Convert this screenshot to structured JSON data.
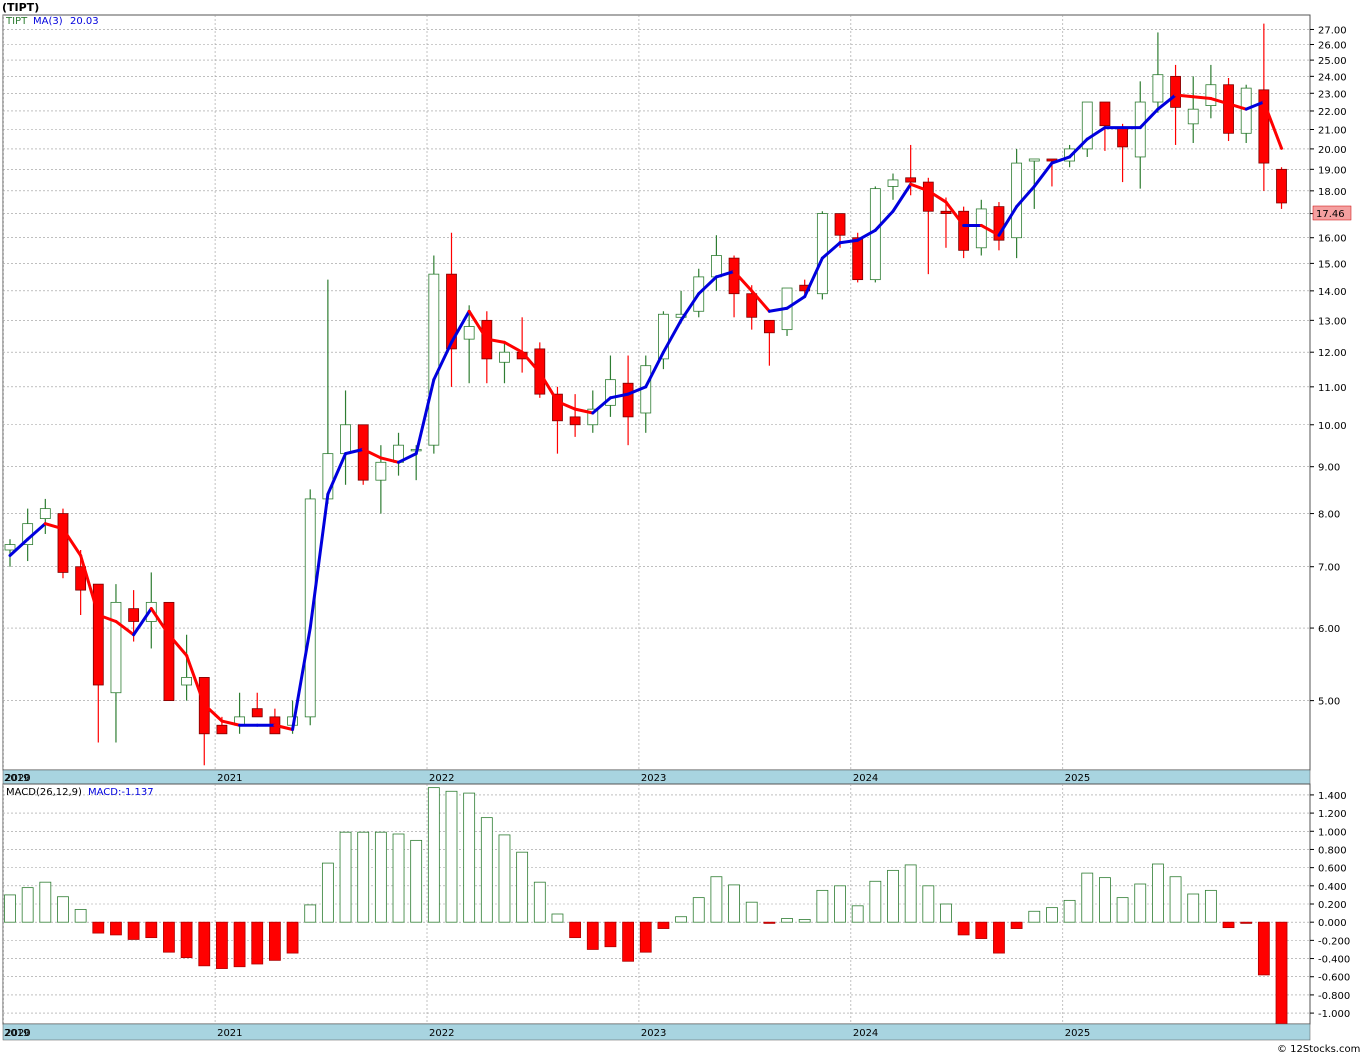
{
  "header": {
    "title": "(TIPT)",
    "legend_ticker": "TIPT",
    "legend_ma_label": "MA(3)",
    "legend_ma_value": "20.03",
    "last_price": "17.46",
    "macd_title": "MACD(26,12,9)",
    "macd_value": "MACD:-1.137",
    "credit": "© 12Stocks.com"
  },
  "colors": {
    "up_candle": "#2e7d32",
    "down_candle": "#ff0000",
    "ma_up": "#0000dd",
    "ma_down": "#ff0000",
    "axis_band": "#a8d4e0",
    "price_tag": "#f4a0a0"
  },
  "chart_data": [
    {
      "type": "candlestick",
      "scale": "log",
      "ylim": [
        4.2,
        28.0
      ],
      "y_ticks": [
        "5.00",
        "6.00",
        "7.00",
        "8.00",
        "9.00",
        "10.00",
        "11.00",
        "12.00",
        "13.00",
        "14.00",
        "15.00",
        "16.00",
        "17.00",
        "18.00",
        "19.00",
        "20.00",
        "21.00",
        "22.00",
        "23.00",
        "24.00",
        "25.00",
        "26.00",
        "27.00"
      ],
      "x_labels": [
        "2019",
        "2020",
        "2021",
        "2022",
        "2023",
        "2024",
        "2025"
      ],
      "x_label_months": [
        -1,
        0,
        12,
        24,
        36,
        48,
        60
      ],
      "series_ohlc": [
        [
          7.3,
          7.5,
          7.0,
          7.4
        ],
        [
          7.4,
          8.1,
          7.1,
          7.8
        ],
        [
          7.9,
          8.3,
          7.6,
          8.1
        ],
        [
          8.0,
          8.1,
          6.8,
          6.9
        ],
        [
          7.0,
          7.3,
          6.2,
          6.6
        ],
        [
          6.7,
          6.7,
          4.5,
          5.2
        ],
        [
          5.1,
          6.7,
          4.5,
          6.4
        ],
        [
          6.3,
          6.6,
          5.8,
          6.1
        ],
        [
          6.1,
          6.9,
          5.7,
          6.4
        ],
        [
          6.4,
          6.4,
          5.0,
          5.0
        ],
        [
          5.2,
          5.9,
          5.0,
          5.3
        ],
        [
          5.3,
          5.3,
          4.25,
          4.6
        ],
        [
          4.7,
          4.8,
          4.6,
          4.6
        ],
        [
          4.7,
          5.1,
          4.6,
          4.8
        ],
        [
          4.9,
          5.1,
          4.8,
          4.8
        ],
        [
          4.8,
          4.9,
          4.6,
          4.6
        ],
        [
          4.7,
          5.0,
          4.6,
          4.8
        ],
        [
          4.8,
          8.5,
          4.7,
          8.3
        ],
        [
          8.3,
          14.4,
          8.2,
          9.3
        ],
        [
          9.3,
          10.9,
          8.6,
          10.0
        ],
        [
          10.0,
          10.0,
          8.6,
          8.7
        ],
        [
          8.7,
          9.5,
          8.0,
          9.1
        ],
        [
          9.1,
          9.8,
          8.8,
          9.5
        ],
        [
          9.4,
          9.5,
          8.7,
          9.4
        ],
        [
          9.5,
          15.3,
          9.3,
          14.6
        ],
        [
          14.6,
          16.2,
          11.0,
          12.1
        ],
        [
          12.4,
          13.5,
          11.1,
          12.8
        ],
        [
          13.0,
          13.3,
          11.1,
          11.8
        ],
        [
          11.7,
          12.3,
          11.1,
          12.0
        ],
        [
          12.0,
          13.1,
          11.4,
          11.8
        ],
        [
          12.1,
          12.3,
          10.7,
          10.8
        ],
        [
          10.8,
          11.0,
          9.3,
          10.1
        ],
        [
          10.2,
          10.8,
          9.7,
          10.0
        ],
        [
          10.0,
          10.9,
          9.8,
          10.4
        ],
        [
          10.5,
          11.9,
          10.2,
          11.2
        ],
        [
          11.1,
          11.9,
          9.5,
          10.2
        ],
        [
          10.3,
          11.9,
          9.8,
          11.6
        ],
        [
          11.8,
          13.3,
          11.5,
          13.2
        ],
        [
          13.1,
          14.0,
          12.9,
          13.2
        ],
        [
          13.3,
          14.8,
          13.1,
          14.5
        ],
        [
          14.5,
          16.1,
          14.0,
          15.3
        ],
        [
          15.2,
          15.3,
          13.1,
          13.9
        ],
        [
          13.9,
          14.2,
          12.7,
          13.1
        ],
        [
          13.0,
          13.0,
          11.6,
          12.6
        ],
        [
          12.7,
          14.1,
          12.5,
          14.1
        ],
        [
          14.2,
          14.4,
          13.9,
          14.0
        ],
        [
          13.9,
          17.1,
          13.7,
          17.0
        ],
        [
          17.0,
          17.0,
          15.6,
          16.1
        ],
        [
          16.0,
          16.2,
          14.3,
          14.4
        ],
        [
          14.4,
          18.2,
          14.3,
          18.1
        ],
        [
          18.2,
          18.8,
          17.6,
          18.5
        ],
        [
          18.6,
          20.2,
          17.8,
          18.4
        ],
        [
          18.4,
          18.6,
          14.6,
          17.1
        ],
        [
          17.1,
          17.7,
          15.6,
          17.0
        ],
        [
          17.1,
          17.3,
          15.2,
          15.5
        ],
        [
          15.6,
          17.6,
          15.3,
          17.2
        ],
        [
          17.3,
          17.5,
          15.5,
          15.9
        ],
        [
          16.0,
          20.0,
          15.2,
          19.3
        ],
        [
          19.4,
          19.5,
          17.2,
          19.5
        ],
        [
          19.5,
          19.5,
          18.2,
          19.4
        ],
        [
          19.4,
          20.2,
          19.1,
          20.0
        ],
        [
          20.0,
          22.5,
          19.6,
          22.5
        ],
        [
          22.5,
          22.5,
          19.9,
          21.2
        ],
        [
          21.1,
          21.3,
          18.4,
          20.1
        ],
        [
          19.6,
          23.7,
          18.1,
          22.5
        ],
        [
          22.5,
          26.8,
          21.9,
          24.1
        ],
        [
          24.0,
          24.7,
          20.2,
          22.2
        ],
        [
          21.3,
          24.0,
          20.3,
          22.1
        ],
        [
          22.3,
          24.7,
          21.6,
          23.5
        ],
        [
          23.5,
          23.9,
          20.4,
          20.8
        ],
        [
          20.8,
          23.5,
          20.3,
          23.3
        ],
        [
          23.2,
          27.4,
          18.0,
          19.3
        ],
        [
          19.0,
          19.1,
          17.2,
          17.46
        ]
      ],
      "ma_values": [
        7.2,
        7.5,
        7.8,
        7.7,
        7.2,
        6.2,
        6.1,
        5.9,
        6.3,
        5.9,
        5.6,
        4.95,
        4.75,
        4.7,
        4.7,
        4.7,
        4.65,
        6.0,
        8.4,
        9.3,
        9.4,
        9.2,
        9.1,
        9.3,
        11.2,
        12.3,
        13.3,
        12.4,
        12.3,
        12.0,
        11.4,
        10.6,
        10.4,
        10.3,
        10.7,
        10.8,
        11.0,
        12.0,
        13.0,
        13.9,
        14.5,
        14.7,
        14.0,
        13.3,
        13.4,
        13.8,
        15.2,
        15.8,
        15.9,
        16.3,
        17.1,
        18.3,
        18.0,
        17.5,
        16.5,
        16.5,
        16.1,
        17.3,
        18.2,
        19.3,
        19.6,
        20.5,
        21.1,
        21.1,
        21.1,
        22.1,
        22.9,
        22.8,
        22.7,
        22.4,
        22.1,
        22.5,
        20.03
      ]
    },
    {
      "type": "bar",
      "title": "MACD(26,12,9)",
      "ylim": [
        -1.12,
        1.52
      ],
      "y_ticks": [
        "-1.000",
        "-0.800",
        "-0.600",
        "-0.400",
        "-0.200",
        "0.000",
        "0.200",
        "0.400",
        "0.600",
        "0.800",
        "1.000",
        "1.200",
        "1.400"
      ],
      "x_labels": [
        "2019",
        "2020",
        "2021",
        "2022",
        "2023",
        "2024",
        "2025"
      ],
      "values": [
        0.3,
        0.38,
        0.44,
        0.28,
        0.14,
        -0.12,
        -0.14,
        -0.19,
        -0.17,
        -0.33,
        -0.39,
        -0.48,
        -0.51,
        -0.49,
        -0.46,
        -0.42,
        -0.34,
        0.19,
        0.65,
        0.99,
        0.99,
        0.99,
        0.97,
        0.9,
        1.48,
        1.44,
        1.42,
        1.15,
        0.96,
        0.77,
        0.44,
        0.09,
        -0.17,
        -0.3,
        -0.27,
        -0.43,
        -0.33,
        -0.07,
        0.06,
        0.27,
        0.5,
        0.41,
        0.22,
        -0.01,
        0.04,
        0.03,
        0.35,
        0.4,
        0.18,
        0.45,
        0.57,
        0.63,
        0.4,
        0.2,
        -0.14,
        -0.18,
        -0.34,
        -0.07,
        0.12,
        0.16,
        0.24,
        0.54,
        0.49,
        0.27,
        0.42,
        0.64,
        0.5,
        0.31,
        0.35,
        -0.06,
        -0.01,
        -0.58,
        -1.137
      ]
    }
  ]
}
